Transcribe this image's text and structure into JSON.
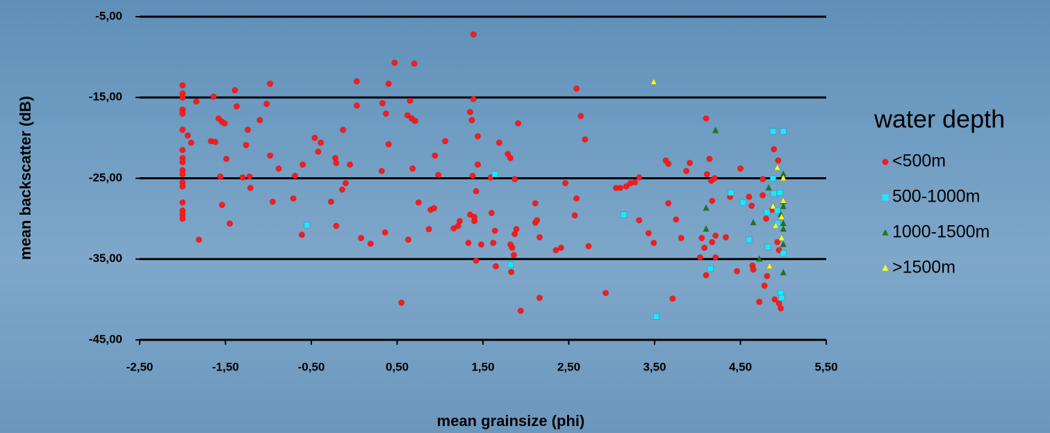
{
  "chart_data": {
    "type": "scatter",
    "x_label": "mean grainsize (phi)",
    "y_label": "mean backscatter (dB)",
    "legend_title": "water depth",
    "legend_position": "right",
    "xlim": [
      -2.5,
      5.5
    ],
    "xticks": [
      {
        "value": -2.5,
        "label": "-2,50"
      },
      {
        "value": -1.5,
        "label": "-1,50"
      },
      {
        "value": -0.5,
        "label": "-0,50"
      },
      {
        "value": 0.5,
        "label": "0,50"
      },
      {
        "value": 1.5,
        "label": "1,50"
      },
      {
        "value": 2.5,
        "label": "2,50"
      },
      {
        "value": 3.5,
        "label": "3,50"
      },
      {
        "value": 4.5,
        "label": "4,50"
      },
      {
        "value": 5.5,
        "label": "5,50"
      }
    ],
    "ylim": [
      -45,
      -5
    ],
    "yticks": [
      {
        "value": -5,
        "label": "-5,00"
      },
      {
        "value": -15,
        "label": "-15,00"
      },
      {
        "value": -25,
        "label": "-25,00"
      },
      {
        "value": -35,
        "label": "-35,00"
      },
      {
        "value": -45,
        "label": "-45,00"
      }
    ],
    "grid": true,
    "series": [
      {
        "name": "<500m",
        "color": "#ff1a1a",
        "marker": "circle",
        "x": [
          -2,
          -2,
          -2,
          -2,
          -2,
          -2,
          -2,
          -2,
          -2,
          -2,
          -2,
          -2,
          -2,
          -2,
          -2,
          -2,
          -2,
          -1.81,
          -1.94,
          -1.9,
          -1.84,
          -1.67,
          -1.64,
          -1.62,
          -1.58,
          -1.54,
          -1.51,
          -1.56,
          -1.54,
          -1.49,
          -1.45,
          -1.39,
          -1.37,
          -1.3,
          -1.26,
          -1.24,
          -1.22,
          -1.21,
          -1.1,
          -1.02,
          -0.98,
          -0.98,
          -0.95,
          -0.88,
          -0.71,
          -0.69,
          -0.61,
          -0.6,
          -0.46,
          -0.42,
          -0.39,
          -0.27,
          -0.22,
          -0.21,
          -0.21,
          -0.13,
          -0.14,
          -0.1,
          -0.05,
          0.03,
          0.03,
          0.08,
          0.19,
          0.33,
          0.37,
          0.4,
          0.4,
          0.36,
          0.32,
          0.47,
          0.55,
          0.62,
          0.65,
          0.67,
          0.7,
          0.71,
          0.68,
          0.63,
          0.75,
          0.87,
          0.89,
          0.93,
          0.94,
          0.98,
          1.06,
          1.16,
          1.21,
          1.23,
          1.33,
          1.35,
          1.35,
          1.37,
          1.38,
          1.39,
          1.39,
          1.4,
          1.4,
          1.42,
          1.42,
          1.44,
          1.48,
          1.44,
          1.59,
          1.6,
          1.62,
          1.64,
          1.65,
          1.69,
          1.79,
          1.82,
          1.82,
          1.84,
          1.87,
          1.87,
          1.86,
          1.83,
          1.89,
          1.91,
          1.94,
          2.11,
          2.11,
          2.13,
          2.16,
          2.16,
          2.35,
          2.41,
          2.46,
          2.57,
          2.59,
          2.59,
          2.64,
          2.69,
          2.73,
          2.93,
          3.05,
          3.1,
          3.17,
          3.22,
          3.27,
          3.32,
          3.32,
          3.43,
          3.49,
          3.63,
          3.66,
          3.66,
          3.71,
          3.75,
          3.81,
          3.87,
          3.91,
          4.03,
          4.05,
          4.08,
          4.1,
          4.1,
          4.11,
          4.14,
          4.16,
          4.17,
          4.17,
          4.21,
          4.2,
          4.21,
          4.33,
          4.38,
          4.46,
          4.5,
          4.6,
          4.63,
          4.64,
          4.65,
          4.72,
          4.76,
          4.76,
          4.78,
          4.8,
          4.81,
          4.87,
          4.89,
          4.9,
          4.93,
          4.94,
          4.95,
          4.95,
          4.97
        ],
        "values": [
          -13.5,
          -14.5,
          -15,
          -16.5,
          -17,
          -19,
          -21.5,
          -22.5,
          -23,
          -24,
          -24.5,
          -25.5,
          -26,
          -28,
          -29,
          -29.5,
          -30,
          -32.6,
          -19.7,
          -20.6,
          -15.5,
          -20.4,
          -14.9,
          -20.5,
          -17.6,
          -18,
          -18.2,
          -24.8,
          -28.3,
          -22.6,
          -30.6,
          -14.1,
          -16.1,
          -24.9,
          -20.9,
          -19,
          -24.8,
          -26.2,
          -17.8,
          -15.8,
          -13.3,
          -22.2,
          -27.9,
          -23.8,
          -27.5,
          -24.7,
          -32,
          -23.3,
          -20,
          -21.7,
          -20.6,
          -27.9,
          -22.5,
          -23.1,
          -30.9,
          -19,
          -26.4,
          -25.6,
          -23.3,
          -13,
          -16,
          -32.4,
          -33.1,
          -15.7,
          -17,
          -13.3,
          -20.8,
          -31.7,
          -24.1,
          -10.7,
          -40.4,
          -17.2,
          -15.4,
          -17.6,
          -10.8,
          -17.9,
          -23.8,
          -32.6,
          -28,
          -31.3,
          -28.9,
          -28.7,
          -22.2,
          -24.6,
          -20.4,
          -31.2,
          -30.9,
          -30.3,
          -33,
          -29.5,
          -16.8,
          -17.8,
          -24.7,
          -15.2,
          -7.2,
          -30.3,
          -29.8,
          -26.6,
          -35.2,
          -19.8,
          -33.2,
          -23.3,
          -24.9,
          -29.3,
          -33,
          -31.5,
          -35.9,
          -20.6,
          -22,
          -22.5,
          -33.2,
          -33.6,
          -31.9,
          -25.1,
          -34.5,
          -36.6,
          -31.3,
          -18.2,
          -41.4,
          -28.1,
          -30.5,
          -30.2,
          -32.3,
          -39.8,
          -33.9,
          -33.6,
          -25.6,
          -29.6,
          -27.5,
          -13.9,
          -17.3,
          -20.2,
          -33.4,
          -39.2,
          -26.2,
          -26.2,
          -26,
          -25.6,
          -25.5,
          -24.9,
          -30.2,
          -31.8,
          -33,
          -22.8,
          -23.2,
          -28.1,
          -39.9,
          -30.1,
          -32.4,
          -24.1,
          -23.1,
          -34.8,
          -32.4,
          -33.6,
          -37,
          -17.6,
          -24.5,
          -22.6,
          -25.3,
          -32.9,
          -27.8,
          -32.1,
          -25,
          -34.8,
          -32.3,
          -27.3,
          -36.5,
          -23.8,
          -27.3,
          -28.4,
          -35.8,
          -36.3,
          -40.3,
          -27.1,
          -25.1,
          -38.3,
          -30,
          -37.1,
          -28.9,
          -21.4,
          -40,
          -32.9,
          -22.8,
          -33.9,
          -40.5,
          -41.1
        ]
      },
      {
        "name": "500-1000m",
        "color": "#1ee6ff",
        "marker": "square",
        "x": [
          4.88,
          5,
          4.88,
          4.89,
          4.96,
          4.39,
          4.53,
          4.81,
          4.93,
          4.93,
          4.6,
          4.82,
          5,
          4.15,
          4.97,
          4.98,
          3.52,
          1.82,
          1.64,
          3.14,
          -0.55
        ],
        "values": [
          -19.2,
          -19.2,
          -25,
          -26.9,
          -26.8,
          -26.8,
          -28,
          -29.2,
          -29,
          -30.6,
          -32.6,
          -33.5,
          -34.3,
          -36.2,
          -39.2,
          -39.8,
          -42.1,
          -35.7,
          -24.5,
          -29.5,
          -30.8
        ]
      },
      {
        "name": "1000-1500m",
        "color": "#1a7a1a",
        "marker": "triangle",
        "x": [
          4.21,
          4.1,
          4.1,
          4.65,
          4.83,
          4.72,
          5,
          5,
          5,
          5,
          5,
          5,
          5,
          4.97
        ],
        "values": [
          -19.1,
          -28.7,
          -31.3,
          -30.5,
          -26.2,
          -35,
          -24.5,
          -28.5,
          -27.9,
          -30.6,
          -31.3,
          -33.2,
          -36.7,
          -29.5
        ]
      },
      {
        "name": ">1500m",
        "color": "#ffff1a",
        "marker": "triangle",
        "x": [
          3.49,
          4.93,
          5,
          5,
          4.98,
          4.98,
          4.88,
          4.84,
          4.91
        ],
        "values": [
          -13.1,
          -23.7,
          -25,
          -27.8,
          -29.8,
          -32.4,
          -28.5,
          -35.9,
          -30.9
        ]
      }
    ]
  }
}
